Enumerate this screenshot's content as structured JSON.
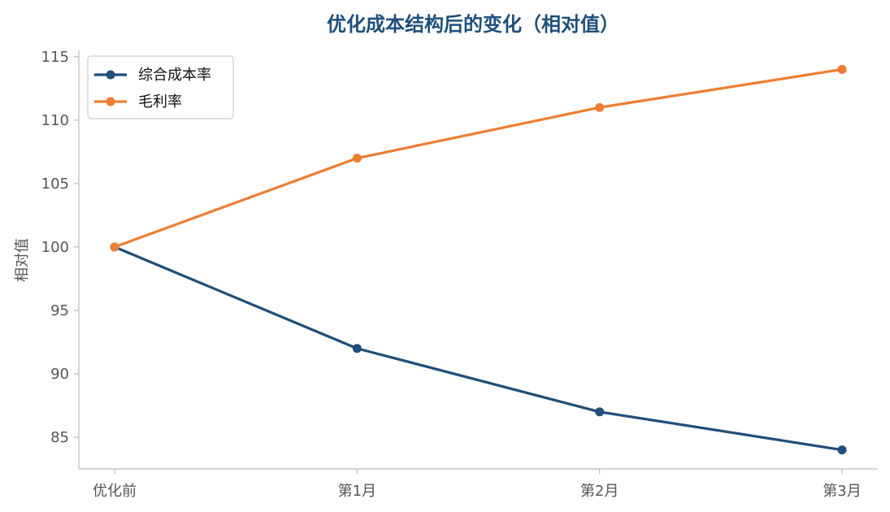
{
  "chart_data": {
    "type": "line",
    "title": "优化成本结构后的变化（相对值）",
    "xlabel": "",
    "ylabel": "相对值",
    "categories": [
      "优化前",
      "第1月",
      "第2月",
      "第3月"
    ],
    "series": [
      {
        "name": "综合成本率",
        "values": [
          100,
          92,
          87,
          84
        ],
        "color": "#1f4e79"
      },
      {
        "name": "毛利率",
        "values": [
          100,
          107,
          111,
          114
        ],
        "color": "#ed7d31"
      }
    ],
    "ylim": [
      82.5,
      115.5
    ],
    "yticks": [
      85,
      90,
      95,
      100,
      105,
      110,
      115
    ],
    "grid": false,
    "legend": "top-left",
    "colors": {
      "title": "#1f4e79",
      "axis": "#bbbbbb",
      "tick_text": "#555555"
    }
  }
}
